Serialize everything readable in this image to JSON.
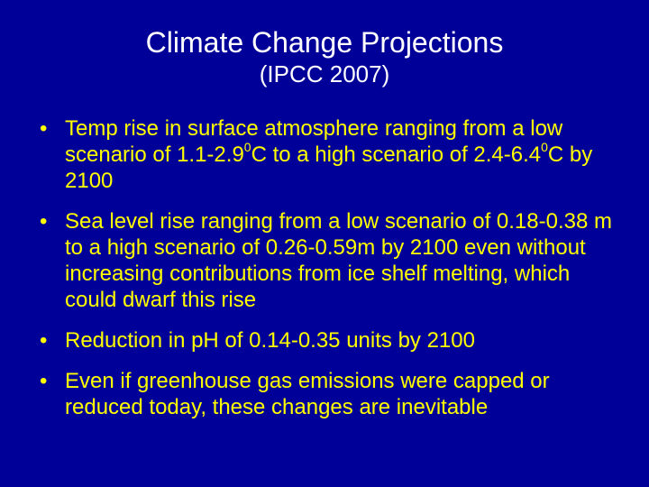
{
  "slide": {
    "title": "Climate Change Projections",
    "subtitle": "(IPCC 2007)",
    "bullet_symbol": "•",
    "bullets": [
      {
        "parts": [
          "Temp rise in surface atmosphere ranging from a low scenario of 1.1-2.9",
          "0",
          "C to a high scenario of 2.4-6.4",
          "0",
          "C by 2100"
        ]
      },
      {
        "text": "Sea level rise ranging from a low scenario of 0.18-0.38 m to a high scenario of 0.26-0.59m by 2100 even without increasing contributions from ice shelf melting, which could dwarf this rise"
      },
      {
        "text": "Reduction in pH of 0.14-0.35 units by 2100"
      },
      {
        "text": "Even if greenhouse gas emissions were capped or reduced today, these changes are inevitable"
      }
    ],
    "colors": {
      "background": "#000099",
      "title": "#ffffff",
      "body": "#ffff00"
    }
  }
}
